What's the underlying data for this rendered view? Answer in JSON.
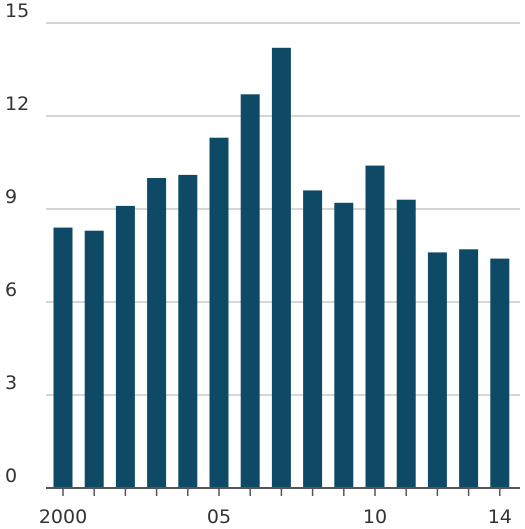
{
  "chart_data": {
    "type": "bar",
    "categories": [
      "2000",
      "2001",
      "2002",
      "2003",
      "2004",
      "2005",
      "2006",
      "2007",
      "2008",
      "2009",
      "2010",
      "2011",
      "2012",
      "2013",
      "2014"
    ],
    "values": [
      8.4,
      8.3,
      9.1,
      10.0,
      10.1,
      11.3,
      12.7,
      14.2,
      9.6,
      9.2,
      10.4,
      9.3,
      7.6,
      7.7,
      7.4
    ],
    "ylim": [
      0,
      15
    ],
    "yticks": [
      "0",
      "3",
      "6",
      "9",
      "12",
      "15"
    ],
    "xtick_labels": [
      {
        "category": "2000",
        "label": "2000"
      },
      {
        "category": "2005",
        "label": "05"
      },
      {
        "category": "2010",
        "label": "10"
      },
      {
        "category": "2014",
        "label": "14"
      }
    ],
    "grid": "horizontal",
    "bar_color": "#0e4a66",
    "grid_color": "#c8c8c8",
    "axis_color": "#555555"
  }
}
